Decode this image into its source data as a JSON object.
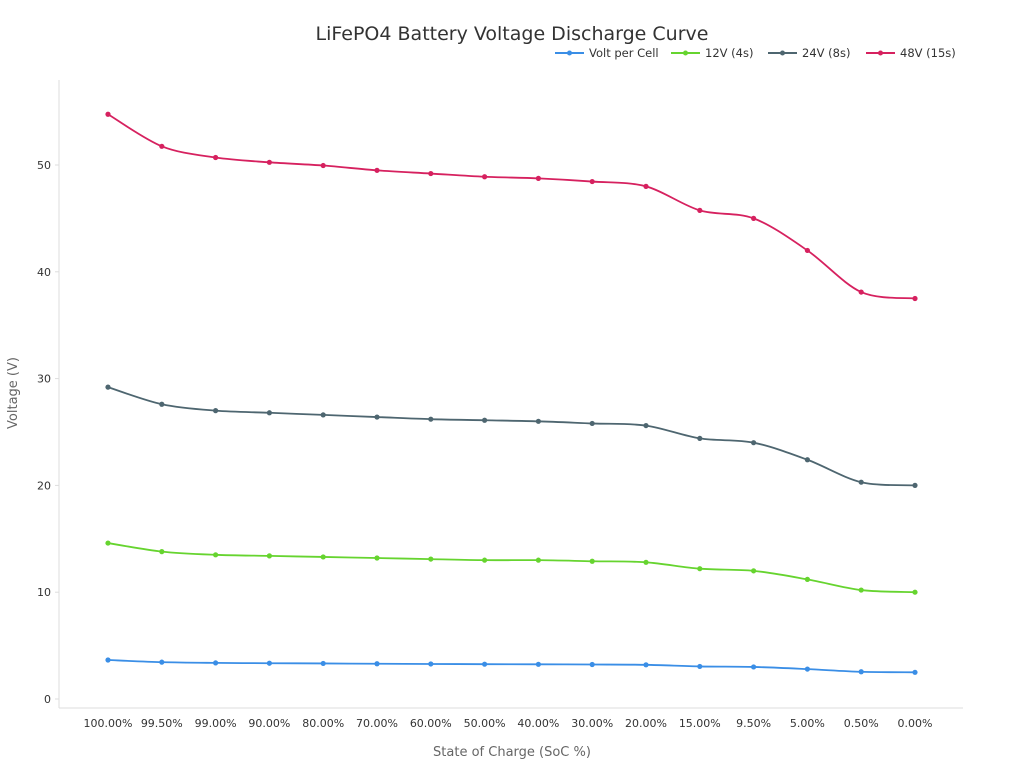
{
  "chart_data": {
    "type": "line",
    "title": "LiFePO4 Battery Voltage Discharge Curve",
    "xlabel": "State of Charge (SoC %)",
    "ylabel": "Voltage (V)",
    "categories": [
      "100.00%",
      "99.50%",
      "99.00%",
      "90.00%",
      "80.00%",
      "70.00%",
      "60.00%",
      "50.00%",
      "40.00%",
      "30.00%",
      "20.00%",
      "15.00%",
      "9.50%",
      "5.00%",
      "0.50%",
      "0.00%"
    ],
    "ylim": [
      -1,
      58
    ],
    "yticks": [
      0,
      10,
      20,
      30,
      40,
      50
    ],
    "grid": false,
    "legend_position": "top-right",
    "series": [
      {
        "name": "Volt per Cell",
        "color": "#3a8ee6",
        "values": [
          3.65,
          3.45,
          3.38,
          3.35,
          3.33,
          3.3,
          3.28,
          3.26,
          3.25,
          3.23,
          3.2,
          3.05,
          3.0,
          2.8,
          2.55,
          2.5
        ]
      },
      {
        "name": "12V (4s)",
        "color": "#66d42f",
        "values": [
          14.6,
          13.8,
          13.5,
          13.4,
          13.3,
          13.2,
          13.1,
          13.0,
          13.0,
          12.9,
          12.8,
          12.2,
          12.0,
          11.2,
          10.2,
          10.0
        ]
      },
      {
        "name": "24V (8s)",
        "color": "#4e6670",
        "values": [
          29.2,
          27.6,
          27.0,
          26.8,
          26.6,
          26.4,
          26.2,
          26.1,
          26.0,
          25.8,
          25.6,
          24.4,
          24.0,
          22.4,
          20.3,
          20.0
        ]
      },
      {
        "name": "48V (15s)",
        "color": "#d6215f",
        "values": [
          54.75,
          51.75,
          50.7,
          50.25,
          49.95,
          49.5,
          49.2,
          48.9,
          48.75,
          48.45,
          48.0,
          45.75,
          45.0,
          42.0,
          38.1,
          37.5
        ]
      }
    ]
  }
}
